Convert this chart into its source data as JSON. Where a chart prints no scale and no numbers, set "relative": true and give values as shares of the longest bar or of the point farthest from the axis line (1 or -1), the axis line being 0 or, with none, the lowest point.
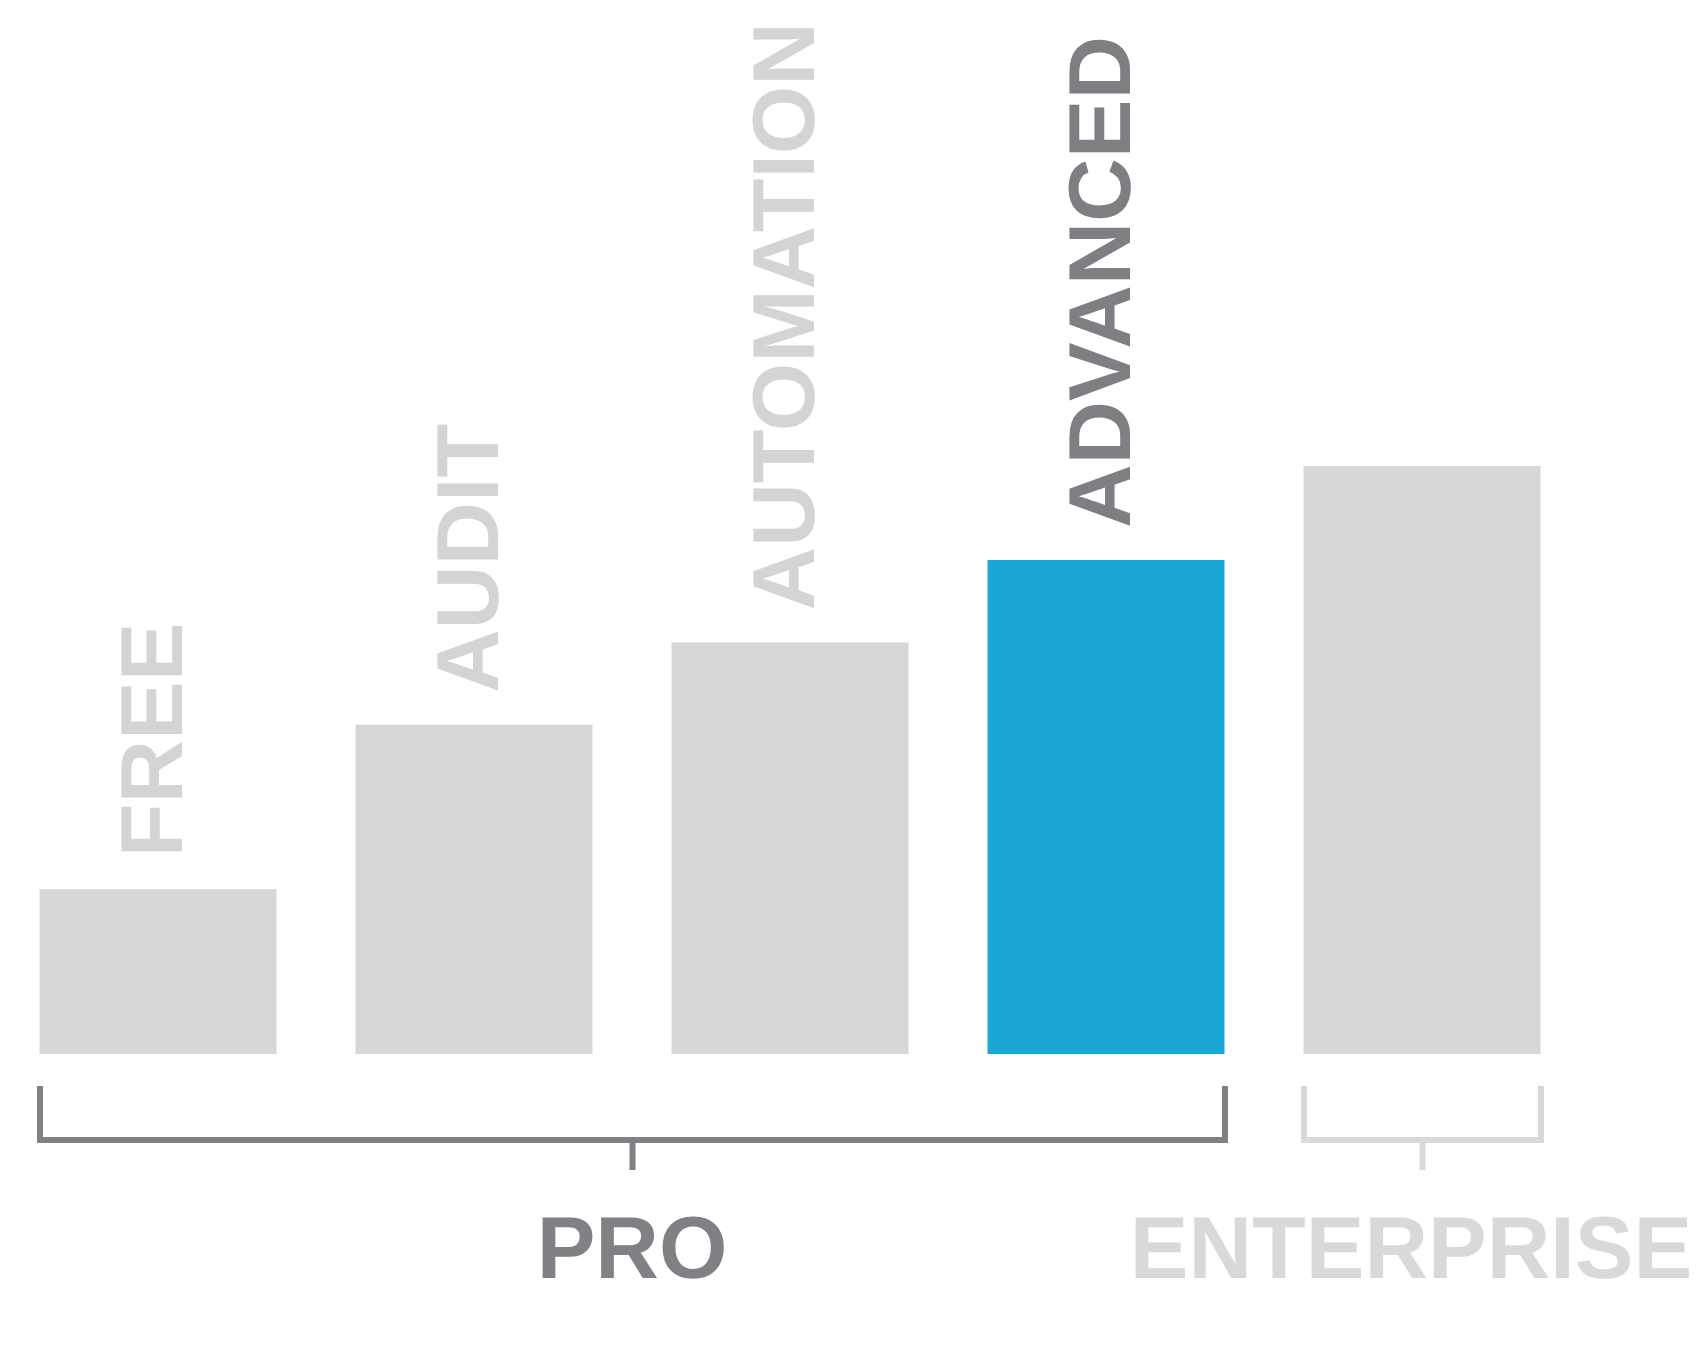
{
  "chart_data": {
    "type": "bar",
    "relative": true,
    "categories": [
      "FREE",
      "AUDIT",
      "AUTOMATION",
      "ADVANCED",
      null
    ],
    "values": [
      0.28,
      0.56,
      0.7,
      0.84,
      1
    ],
    "colors": [
      "#d7d7d9",
      "#d7d7d9",
      "#d7d7d9",
      "#19a8d6",
      "#d7d7d9"
    ],
    "annotations": [
      "PRO",
      "ENTERPRISE"
    ]
  }
}
